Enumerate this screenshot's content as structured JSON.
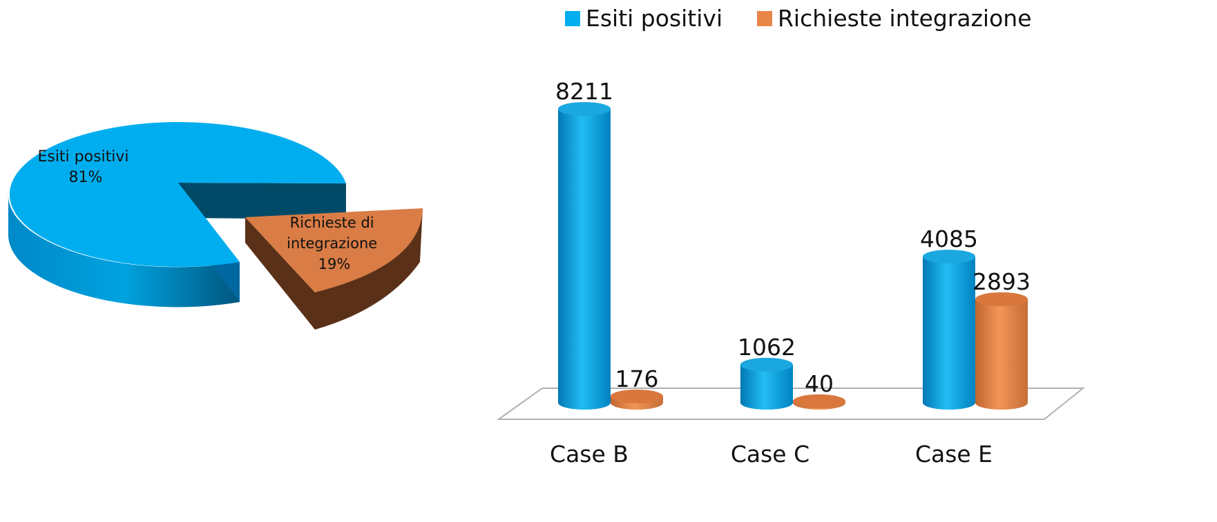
{
  "chart_data": [
    {
      "type": "pie",
      "slices": [
        {
          "label": "Esiti positivi",
          "value_label": "81%",
          "value": 81,
          "color": "#00AEEF",
          "side_color": "#006FA3",
          "inner_color": "#004A68"
        },
        {
          "label_lines": [
            "Richieste di",
            "integrazione"
          ],
          "value_label": "19%",
          "value": 19,
          "color": "#D97C45",
          "side_color": "#5A3118",
          "inner_color": "#7A4220"
        }
      ]
    },
    {
      "type": "bar",
      "categories": [
        "Case B",
        "Case C",
        "Case E"
      ],
      "series": [
        {
          "name": "Esiti positivi",
          "values": [
            8211,
            1062,
            4085
          ],
          "labels": [
            "8211",
            "1062",
            "4085"
          ],
          "color": "#00AEEF"
        },
        {
          "name": "Richieste integrazione",
          "values": [
            176,
            40,
            2893
          ],
          "labels": [
            "176",
            "40",
            "2893"
          ],
          "color": "#E8864A"
        }
      ],
      "legend_position": "top",
      "grid": false
    }
  ]
}
